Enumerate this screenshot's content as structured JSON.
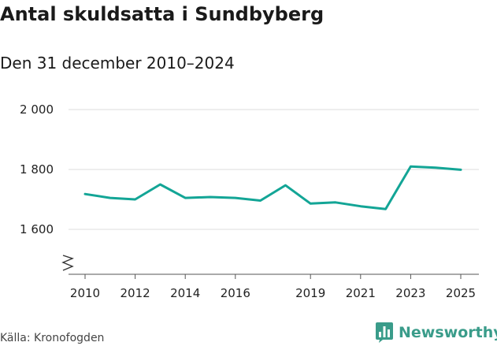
{
  "title": "Antal skuldsatta i Sundbyberg",
  "subtitle": "Den 31 december 2010–2024",
  "source": "Källa: Kronofogden",
  "brand": {
    "name": "Newsworthy",
    "color": "#3a9c8a",
    "icon": "bar-chart-logo-icon"
  },
  "chart_data": {
    "type": "line",
    "title": "Antal skuldsatta i Sundbyberg",
    "subtitle": "Den 31 december 2010–2024",
    "xlabel": "",
    "ylabel": "",
    "x": [
      2010,
      2011,
      2012,
      2013,
      2014,
      2015,
      2016,
      2017,
      2018,
      2019,
      2020,
      2021,
      2022,
      2023,
      2024,
      2025
    ],
    "series": [
      {
        "values": [
          1718,
          1705,
          1700,
          1750,
          1705,
          1708,
          1705,
          1696,
          1747,
          1686,
          1690,
          1677,
          1668,
          1810,
          1806,
          1799
        ],
        "color": "#13a596"
      }
    ],
    "ylim": [
      1450,
      2000
    ],
    "y_ticks": [
      1600,
      1800,
      2000
    ],
    "y_tick_labels": [
      "1 600",
      "1 800",
      "2 000"
    ],
    "x_ticks": [
      2010,
      2012,
      2014,
      2016,
      2019,
      2021,
      2023,
      2025
    ],
    "x_tick_labels": [
      "2010",
      "2012",
      "2014",
      "2016",
      "2019",
      "2021",
      "2023",
      "2025"
    ],
    "axis_break": true,
    "grid": true
  }
}
